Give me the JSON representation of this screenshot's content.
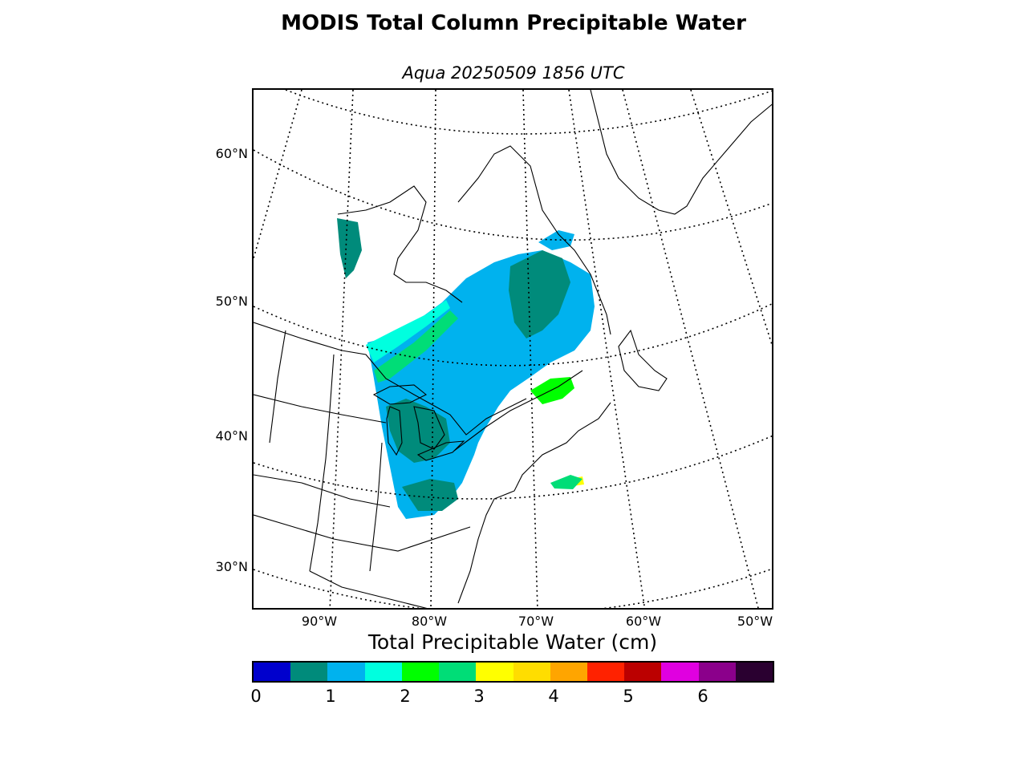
{
  "title": "MODIS Total Column Precipitable Water",
  "subtitle": "Aqua 20250509 1856 UTC",
  "latitude_labels": [
    "60°N",
    "50°N",
    "40°N",
    "30°N"
  ],
  "longitude_labels": [
    "90°W",
    "80°W",
    "70°W",
    "60°W",
    "50°W"
  ],
  "colorbar": {
    "title": "Total Precipitable Water (cm)",
    "tick_labels": [
      "0",
      "1",
      "2",
      "3",
      "4",
      "5",
      "6"
    ],
    "colors": [
      "#0000cd",
      "#008b7b",
      "#00b2ee",
      "#00ffdf",
      "#00ff00",
      "#00dd77",
      "#ffff00",
      "#ffdd00",
      "#ffa500",
      "#ff2200",
      "#bb0000",
      "#e000e0",
      "#8b008b",
      "#2a0030"
    ]
  },
  "map": {
    "projection": "polar stereographic",
    "legend_position": "bottom",
    "grid": true
  }
}
